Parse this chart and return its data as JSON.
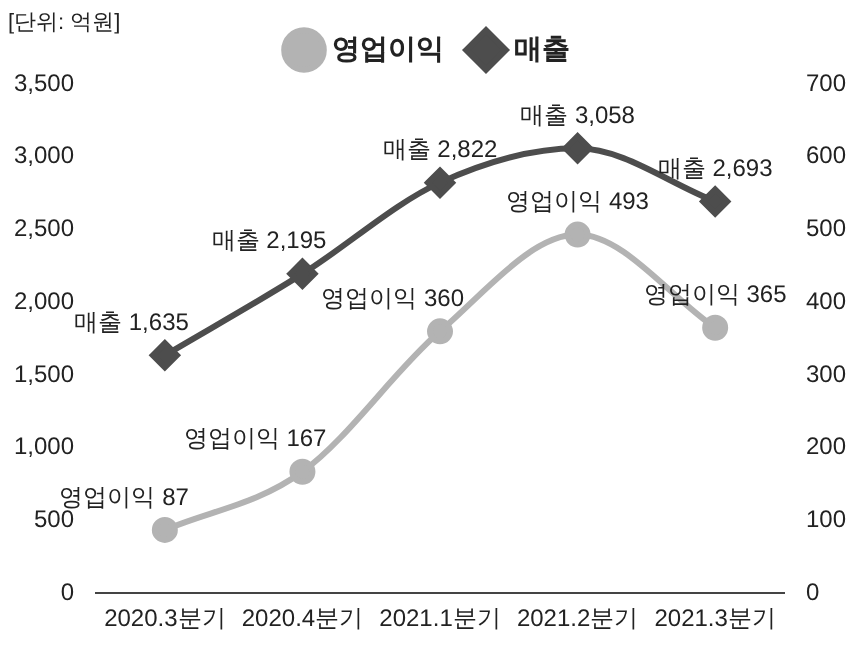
{
  "chart_data": {
    "type": "line",
    "categories": [
      "2020.3분기",
      "2020.4분기",
      "2021.1분기",
      "2021.2분기",
      "2021.3분기"
    ],
    "series": [
      {
        "name": "영업이익",
        "color": "#b3b3b3",
        "axis": "y2",
        "marker": "circle",
        "values": [
          87,
          167,
          360,
          493,
          365
        ],
        "value_labels": [
          "영업이익 87",
          "영업이익 167",
          "영업이익 360",
          "영업이익 493",
          "영업이익 365"
        ]
      },
      {
        "name": "매출",
        "color": "#4d4d4d",
        "marker": "diamond",
        "values": [
          1635,
          2195,
          2822,
          3058,
          2693
        ],
        "value_labels": [
          "매출 1,635",
          "매출 2,195",
          "매출 2,822",
          "매출 3,058",
          "매출 2,693"
        ]
      }
    ],
    "ylim": [
      0,
      3500
    ],
    "yticks": [
      0,
      500,
      {
        "value": 1000,
        "label": "1,000"
      },
      {
        "value": 1500,
        "label": "1,500"
      },
      {
        "value": 2000,
        "label": "2,000"
      },
      {
        "value": 2500,
        "label": "2,500"
      },
      {
        "value": 3000,
        "label": "3,000"
      },
      {
        "value": 3500,
        "label": "3,500"
      }
    ],
    "y2lim": [
      0,
      700
    ],
    "y2ticks": [
      0,
      100,
      200,
      300,
      400,
      500,
      600,
      700
    ],
    "grid": false,
    "legend": "top",
    "annotations": [
      "[단위: 억원]"
    ]
  }
}
